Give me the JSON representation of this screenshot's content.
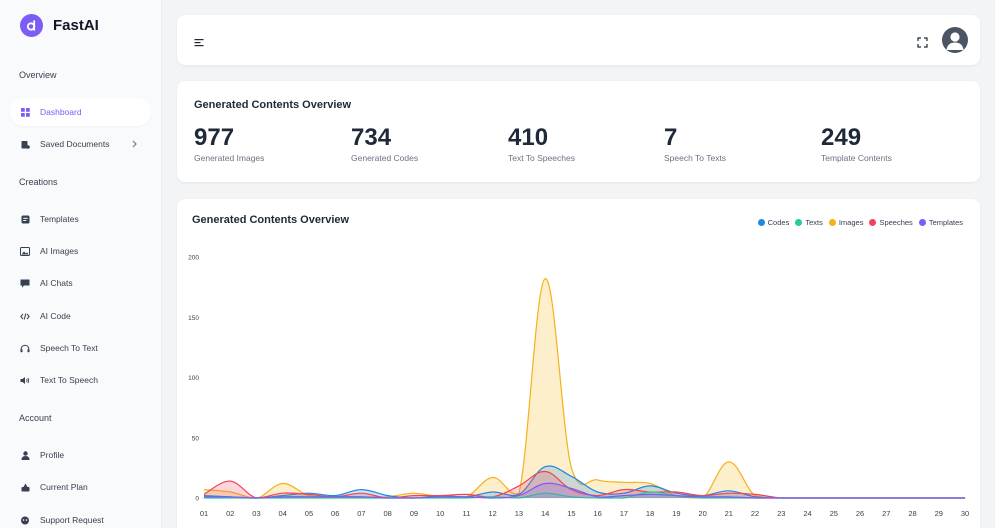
{
  "brand": {
    "name": "FastAI"
  },
  "sidebar": {
    "sections": [
      {
        "title": "Overview"
      },
      {
        "title": "Creations"
      },
      {
        "title": "Account"
      }
    ],
    "items": [
      {
        "label": "Dashboard",
        "icon": "dashboard-icon",
        "active": true
      },
      {
        "label": "Saved Documents",
        "icon": "document-icon"
      },
      {
        "label": "Templates",
        "icon": "template-icon"
      },
      {
        "label": "AI Images",
        "icon": "image-icon"
      },
      {
        "label": "AI Chats",
        "icon": "chat-icon"
      },
      {
        "label": "AI Code",
        "icon": "code-icon"
      },
      {
        "label": "Speech To Text",
        "icon": "headphones-icon"
      },
      {
        "label": "Text To Speech",
        "icon": "speaker-icon"
      },
      {
        "label": "Profile",
        "icon": "user-icon"
      },
      {
        "label": "Current Plan",
        "icon": "plan-icon"
      },
      {
        "label": "Support Request",
        "icon": "support-icon"
      }
    ]
  },
  "stats": {
    "title": "Generated Contents Overview",
    "items": [
      {
        "value": "977",
        "label": "Generated Images"
      },
      {
        "value": "734",
        "label": "Generated Codes"
      },
      {
        "value": "410",
        "label": "Text To Speeches"
      },
      {
        "value": "7",
        "label": "Speech To Texts"
      },
      {
        "value": "249",
        "label": "Template Contents"
      }
    ]
  },
  "chart_data": {
    "type": "area",
    "title": "Generated Contents Overview",
    "legend_position": "top-right",
    "x": [
      "01",
      "02",
      "03",
      "04",
      "05",
      "06",
      "07",
      "08",
      "09",
      "10",
      "11",
      "12",
      "13",
      "14",
      "15",
      "16",
      "17",
      "18",
      "19",
      "20",
      "21",
      "22",
      "23",
      "24",
      "25",
      "26",
      "27",
      "28",
      "29",
      "30"
    ],
    "ylim": [
      0,
      200
    ],
    "yticks": [
      0,
      50,
      100,
      150,
      200
    ],
    "series": [
      {
        "name": "Codes",
        "color": "#1e88e5",
        "values": [
          2,
          1,
          0,
          2,
          4,
          2,
          7,
          2,
          0,
          2,
          1,
          5,
          3,
          26,
          18,
          5,
          4,
          10,
          4,
          2,
          6,
          1,
          0,
          0,
          0,
          0,
          0,
          0,
          0,
          0
        ]
      },
      {
        "name": "Texts",
        "color": "#1fcf97",
        "values": [
          0,
          0,
          0,
          0,
          0,
          0,
          0,
          0,
          0,
          0,
          0,
          1,
          0,
          4,
          1,
          0,
          0,
          5,
          2,
          0,
          0,
          0,
          0,
          0,
          0,
          0,
          0,
          0,
          0,
          0
        ]
      },
      {
        "name": "Images",
        "color": "#f6b019",
        "values": [
          7,
          5,
          0,
          12,
          2,
          1,
          1,
          1,
          4,
          1,
          1,
          17,
          4,
          182,
          25,
          15,
          13,
          12,
          2,
          0,
          30,
          2,
          0,
          0,
          0,
          0,
          0,
          0,
          0,
          0
        ]
      },
      {
        "name": "Speeches",
        "color": "#f0445a",
        "values": [
          3,
          14,
          0,
          4,
          3,
          1,
          4,
          0,
          2,
          2,
          3,
          1,
          10,
          22,
          7,
          2,
          7,
          5,
          5,
          2,
          4,
          3,
          0,
          0,
          0,
          0,
          0,
          0,
          0,
          0
        ]
      },
      {
        "name": "Templates",
        "color": "#7c5cf5",
        "values": [
          1,
          1,
          0,
          1,
          1,
          1,
          1,
          0,
          0,
          1,
          1,
          0,
          2,
          12,
          8,
          1,
          2,
          3,
          2,
          1,
          1,
          0,
          0,
          0,
          0,
          0,
          0,
          0,
          0,
          0
        ]
      }
    ]
  }
}
